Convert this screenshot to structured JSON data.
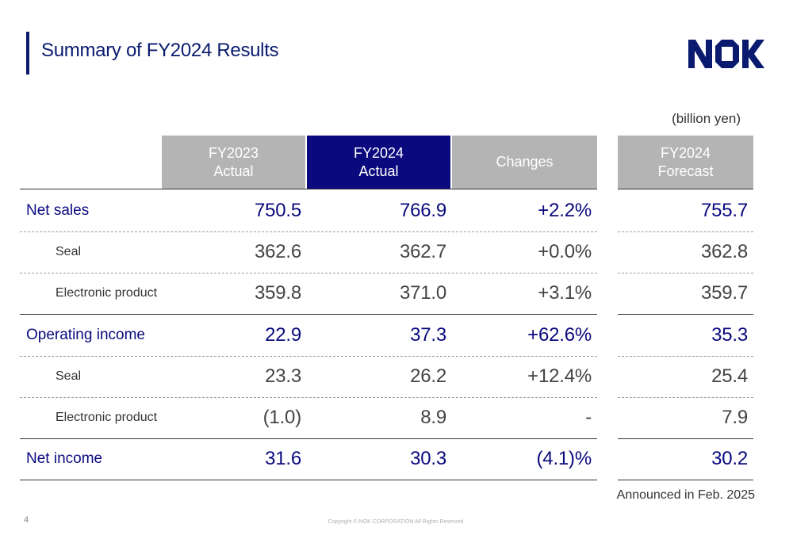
{
  "title": "Summary of FY2024 Results",
  "logo": {
    "text": "NOK",
    "color": "#0a1a6e"
  },
  "unit": "(billion yen)",
  "headers": {
    "fy2023": [
      "FY2023",
      "Actual"
    ],
    "fy2024": [
      "FY2024",
      "Actual"
    ],
    "changes": "Changes",
    "forecast": [
      "FY2024",
      "Forecast"
    ]
  },
  "rows": [
    {
      "label": "Net sales",
      "fy2023": "750.5",
      "fy2024": "766.9",
      "change": "+2.2%",
      "forecast": "755.7"
    },
    {
      "label": "Seal",
      "fy2023": "362.6",
      "fy2024": "362.7",
      "change": "+0.0%",
      "forecast": "362.8"
    },
    {
      "label": "Electronic product",
      "fy2023": "359.8",
      "fy2024": "371.0",
      "change": "+3.1%",
      "forecast": "359.7"
    },
    {
      "label": "Operating income",
      "fy2023": "22.9",
      "fy2024": "37.3",
      "change": "+62.6%",
      "forecast": "35.3"
    },
    {
      "label": "Seal",
      "fy2023": "23.3",
      "fy2024": "26.2",
      "change": "+12.4%",
      "forecast": "25.4"
    },
    {
      "label": "Electronic product",
      "fy2023": "(1.0)",
      "fy2024": "8.9",
      "change": "-",
      "forecast": "7.9"
    },
    {
      "label": "Net income",
      "fy2023": "31.6",
      "fy2024": "30.3",
      "change": "(4.1)%",
      "forecast": "30.2"
    }
  ],
  "announced": "Announced in Feb. 2025",
  "page_number": "4",
  "copyright": "Copyright © NOK CORPORATION All Rights Reserved.",
  "colors": {
    "navy": "#0a0a7e",
    "header_gray": "#b4b4b4"
  }
}
